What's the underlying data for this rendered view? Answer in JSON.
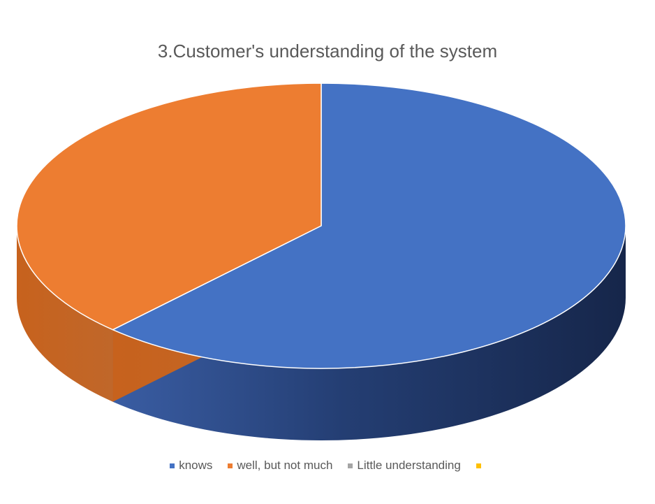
{
  "chart_data": {
    "type": "pie",
    "title": "3.Customer's understanding of the system",
    "categories": [
      "knows",
      "well, but not much",
      "Little understanding",
      ""
    ],
    "values": [
      62,
      38,
      0,
      0
    ],
    "colors": [
      "#4472C4",
      "#ED7D31",
      "#A5A5A5",
      "#FFC000"
    ],
    "side_colors": [
      "#2F5597",
      "#C55A11",
      "#7F7F7F",
      "#BF9000"
    ],
    "start_angle_deg": -90,
    "legend_position": "bottom",
    "three_d": true
  }
}
